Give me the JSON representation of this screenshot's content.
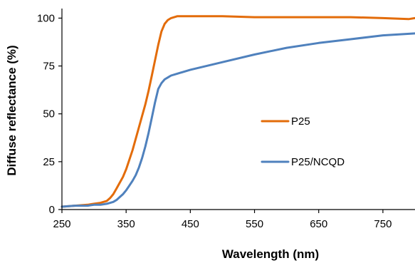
{
  "chart_data": {
    "type": "line",
    "title": "",
    "xlabel": "Wavelength (nm)",
    "ylabel": "Diffuse reflectance (%)",
    "xlim": [
      250,
      800
    ],
    "ylim": [
      0,
      105
    ],
    "x_ticks": [
      250,
      350,
      450,
      550,
      650,
      750
    ],
    "y_ticks": [
      0,
      25,
      50,
      75,
      100
    ],
    "grid": false,
    "legend_position": "center-right",
    "series": [
      {
        "name": "P25",
        "color": "#E36C0A",
        "x": [
          250,
          270,
          290,
          300,
          310,
          320,
          325,
          330,
          335,
          340,
          345,
          350,
          355,
          360,
          365,
          370,
          375,
          380,
          385,
          390,
          395,
          400,
          405,
          410,
          415,
          420,
          425,
          430,
          440,
          450,
          470,
          500,
          550,
          600,
          650,
          700,
          750,
          790,
          800
        ],
        "y": [
          1.5,
          2,
          2.5,
          3,
          3.5,
          4.5,
          6,
          8,
          11,
          14,
          17,
          21,
          26,
          31,
          37,
          43,
          49,
          55,
          62,
          70,
          78,
          86,
          93,
          97,
          99,
          100,
          100.5,
          101,
          101,
          101,
          101,
          101,
          100.5,
          100.5,
          100.5,
          100.5,
          100,
          99.5,
          100
        ]
      },
      {
        "name": "P25/NCQD",
        "color": "#4F81BD",
        "x": [
          250,
          270,
          290,
          300,
          310,
          320,
          330,
          335,
          340,
          345,
          350,
          355,
          360,
          365,
          370,
          375,
          380,
          385,
          390,
          395,
          400,
          405,
          410,
          415,
          420,
          430,
          450,
          500,
          550,
          600,
          650,
          700,
          750,
          800
        ],
        "y": [
          1.5,
          2,
          2,
          2.5,
          2.5,
          3,
          4,
          5,
          6.5,
          8,
          10,
          12.5,
          15,
          18,
          22,
          27,
          33,
          40,
          48,
          56,
          63,
          66,
          68,
          69,
          70,
          71,
          73,
          77,
          81,
          84.5,
          87,
          89,
          91,
          92
        ]
      }
    ]
  }
}
